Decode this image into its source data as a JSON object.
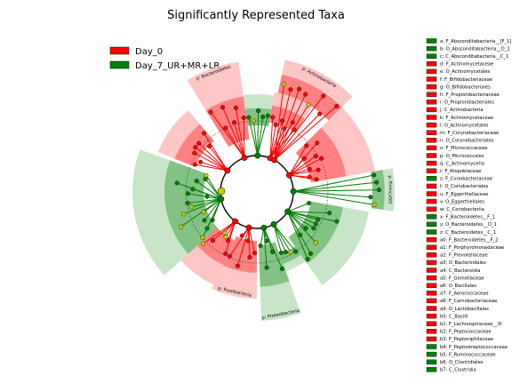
{
  "chart_data": {
    "type": "cladogram",
    "title": "Significantly Represented Taxa",
    "legend": {
      "placement": "top-left",
      "entries": [
        {
          "name": "Day_0",
          "color": "#ff0000"
        },
        {
          "name": "Day_7_UR+MR+LR",
          "color": "#008000"
        }
      ]
    },
    "colors": {
      "day0_strong": "#ff0000",
      "day0_light": "#ffb3b3",
      "day7_strong": "#008000",
      "day7_light": "#b6dcb6",
      "neutral_node": "#cccc00",
      "edge": "#000000"
    },
    "phylum_labels": [
      {
        "text": "p: Bacteroidetes",
        "group": "day0"
      },
      {
        "text": "p: Actinobacteria",
        "group": "day0"
      },
      {
        "text": "p: Firmicutes",
        "group": "day7"
      },
      {
        "text": "p: Proteobacteria",
        "group": "day7"
      },
      {
        "text": "p: Fusobacteria",
        "group": "day0"
      }
    ],
    "side_list": [
      {
        "key": "a",
        "label": "a: F_Absconditabacteria__[F_1]",
        "group": "day7"
      },
      {
        "key": "b",
        "label": "b: O_Absconditabacteria__O_1",
        "group": "day7"
      },
      {
        "key": "c",
        "label": "c: C_Absconditabacteria__C_1",
        "group": "day7"
      },
      {
        "key": "d",
        "label": "d: F_Actinomycetaceae",
        "group": "day0"
      },
      {
        "key": "e",
        "label": "e: O_Actinomycetales",
        "group": "day0"
      },
      {
        "key": "f",
        "label": "f: F_Bifidobacteriaceae",
        "group": "day0"
      },
      {
        "key": "g",
        "label": "g: O_Bifidobacteriales",
        "group": "day0"
      },
      {
        "key": "h",
        "label": "h: F_Propionibacteriaceae",
        "group": "day0"
      },
      {
        "key": "i",
        "label": "i: O_Propionibacteriales",
        "group": "day0"
      },
      {
        "key": "j",
        "label": "j: C_Actinobacteria",
        "group": "day0"
      },
      {
        "key": "k",
        "label": "k: F_Actinomycetaceae",
        "group": "day0"
      },
      {
        "key": "l",
        "label": "l: O_Actinomycetales",
        "group": "day0"
      },
      {
        "key": "m",
        "label": "m: F_Corynebacteriaceae",
        "group": "day0"
      },
      {
        "key": "n",
        "label": "n: O_Corynebacteriales",
        "group": "day0"
      },
      {
        "key": "o",
        "label": "o: F_Micrococcaceae",
        "group": "day0"
      },
      {
        "key": "p",
        "label": "p: O_Micrococcales",
        "group": "day0"
      },
      {
        "key": "q",
        "label": "q: C_Actinomycetia",
        "group": "day0"
      },
      {
        "key": "r",
        "label": "r: F_Atopobiaceae",
        "group": "day0"
      },
      {
        "key": "s",
        "label": "s: F_Coriobacteriaceae",
        "group": "day7"
      },
      {
        "key": "t",
        "label": "t: O_Coriobacteriales",
        "group": "day0"
      },
      {
        "key": "u",
        "label": "u: F_Eggerthellaceae",
        "group": "day0"
      },
      {
        "key": "v",
        "label": "v: O_Eggerthellales",
        "group": "day0"
      },
      {
        "key": "w",
        "label": "w: C_Coriobacteriia",
        "group": "day0"
      },
      {
        "key": "x",
        "label": "x: F_Bacteroidetes__F_1",
        "group": "day7"
      },
      {
        "key": "y",
        "label": "y: O_Bacteroidetes__O_1",
        "group": "day7"
      },
      {
        "key": "z",
        "label": "z: C_Bacteroidetes__C_1",
        "group": "day7"
      },
      {
        "key": "a0",
        "label": "a0: F_Bacteroidetes__F_2",
        "group": "day0"
      },
      {
        "key": "a1",
        "label": "a1: F_Porphyromonadaceae",
        "group": "day0"
      },
      {
        "key": "a2",
        "label": "a2: F_Prevotellaceae",
        "group": "day0"
      },
      {
        "key": "a3",
        "label": "a3: O_Bacteroidales",
        "group": "day0"
      },
      {
        "key": "a4",
        "label": "a4: C_Bacteroidia",
        "group": "day0"
      },
      {
        "key": "a5",
        "label": "a5: F_Gemellaceae",
        "group": "day0"
      },
      {
        "key": "a6",
        "label": "a6: O_Bacillales",
        "group": "day0"
      },
      {
        "key": "a7",
        "label": "a7: F_Aerococcaceae",
        "group": "day0"
      },
      {
        "key": "a8",
        "label": "a8: F_Carnobacteriaceae",
        "group": "day0"
      },
      {
        "key": "a9",
        "label": "a9: O_Lactobacillales",
        "group": "day0"
      },
      {
        "key": "b0",
        "label": "b0: C_Bacilli",
        "group": "day0"
      },
      {
        "key": "b1",
        "label": "b1: F_Lachnospiraceae__XI",
        "group": "day0"
      },
      {
        "key": "b2",
        "label": "b2: F_Peptococcaceae",
        "group": "day0"
      },
      {
        "key": "b3",
        "label": "b3: F_Peptoniphilaceae",
        "group": "day0"
      },
      {
        "key": "b4",
        "label": "b4: F_Peptostreptococcaceae",
        "group": "day7"
      },
      {
        "key": "b5",
        "label": "b5: F_Ruminococcaceae",
        "group": "day7"
      },
      {
        "key": "b6",
        "label": "b6: O_Clostridiales",
        "group": "day7"
      },
      {
        "key": "b7",
        "label": "b7: C_Clostridia",
        "group": "day7"
      }
    ],
    "wedges": [
      {
        "a1": 10,
        "a2": 33,
        "label": "",
        "group": "day0",
        "rIn": 80,
        "rOut": 114
      },
      {
        "a1": 12,
        "a2": 45,
        "label": "p: Actinobacteria",
        "group": "day0",
        "rIn": 114,
        "rOut": 152
      },
      {
        "a1": 45,
        "a2": 80,
        "label": "",
        "group": "day0",
        "rIn": 62,
        "rOut": 135
      },
      {
        "a1": 80,
        "a2": 98,
        "label": "p: Firmicutes",
        "group": "day7",
        "rIn": 130,
        "rOut": 155
      },
      {
        "a1": 100,
        "a2": 145,
        "label": "",
        "group": "day7",
        "rIn": 62,
        "rOut": 128
      },
      {
        "a1": 145,
        "a2": 160,
        "label": "",
        "group": "day7",
        "rIn": 75,
        "rOut": 95
      },
      {
        "a1": 160,
        "a2": 178,
        "label": "p: Proteobacteria",
        "group": "day7",
        "rIn": 60,
        "rOut": 145
      },
      {
        "a1": 180,
        "a2": 205,
        "label": "p: Fusobacteria",
        "group": "day0",
        "rIn": 55,
        "rOut": 120
      },
      {
        "a1": 205,
        "a2": 228,
        "label": "",
        "group": "day0",
        "rIn": 60,
        "rOut": 115
      },
      {
        "a1": 228,
        "a2": 290,
        "label": "",
        "group": "day7",
        "rIn": 60,
        "rOut": 140
      },
      {
        "a1": 292,
        "a2": 320,
        "label": "",
        "group": "day0",
        "rIn": 75,
        "rOut": 120
      },
      {
        "a1": 328,
        "a2": 352,
        "label": "p: Bacteroidetes",
        "group": "day0",
        "rIn": 60,
        "rOut": 148
      },
      {
        "a1": 352,
        "a2": 10,
        "label": "",
        "group": "day7",
        "rIn": 75,
        "rOut": 110
      }
    ]
  }
}
